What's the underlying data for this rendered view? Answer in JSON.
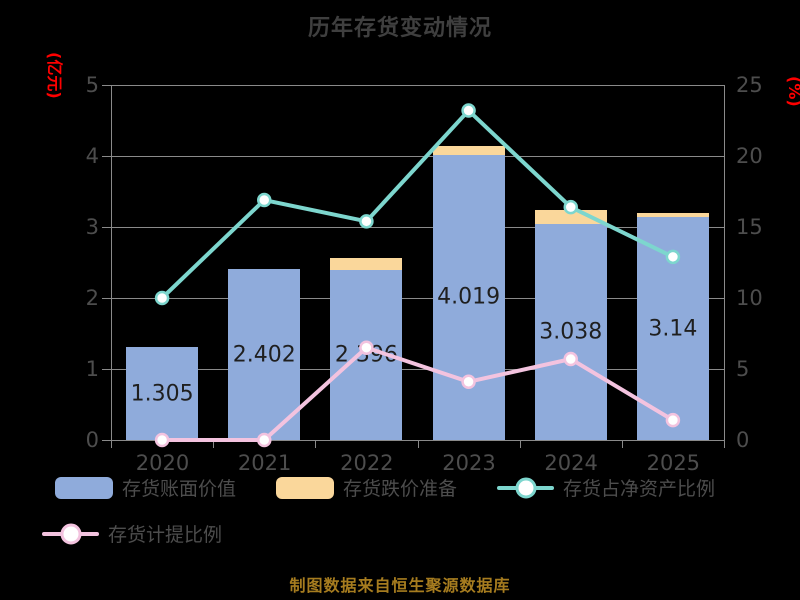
{
  "title": "历年存货变动情况",
  "footer": "制图数据来自恒生聚源数据库",
  "colors": {
    "background": "#000000",
    "title_text": "#3f3f3f",
    "axis_text": "#4d4d4d",
    "axis_line": "#8a8a8a",
    "bar_blue": "#8FABDB",
    "bar_orange": "#FAD79B",
    "line_teal": "#7DD6CE",
    "line_pink": "#F3C3DF",
    "axis_title_red": "#FF0000",
    "footer_gold": "#A67C1F"
  },
  "chart_data": {
    "type": "bar",
    "title": "历年存货变动情况",
    "categories": [
      "2020",
      "2021",
      "2022",
      "2023",
      "2024",
      "2025"
    ],
    "series": [
      {
        "name": "存货账面价值",
        "type": "bar",
        "axis": "left",
        "color": "#8FABDB",
        "values": [
          1.305,
          2.402,
          2.396,
          4.019,
          3.038,
          3.14
        ],
        "labels": [
          "1.305",
          "2.402",
          "2.396",
          "4.019",
          "3.038",
          "3.14"
        ]
      },
      {
        "name": "存货跌价准备",
        "type": "bar-stacked-cap",
        "axis": "left",
        "color": "#FAD79B",
        "values": [
          0,
          0,
          0.17,
          0.12,
          0.2,
          0.06
        ]
      },
      {
        "name": "存货占净资产比例",
        "type": "line",
        "axis": "right",
        "color": "#7DD6CE",
        "values": [
          10,
          16.9,
          15.4,
          23.2,
          16.4,
          12.9
        ]
      },
      {
        "name": "存货计提比例",
        "type": "line",
        "axis": "right",
        "color": "#F3C3DF",
        "values": [
          0,
          0,
          6.5,
          4.1,
          5.7,
          1.4
        ]
      }
    ],
    "left_axis": {
      "title": "(亿元)",
      "min": 0,
      "max": 5,
      "ticks": [
        0,
        1,
        2,
        3,
        4,
        5
      ]
    },
    "right_axis": {
      "title": "(%)",
      "min": 0,
      "max": 25,
      "ticks": [
        0,
        5,
        10,
        15,
        20,
        25
      ]
    },
    "grid": true,
    "legend_position": "bottom"
  }
}
